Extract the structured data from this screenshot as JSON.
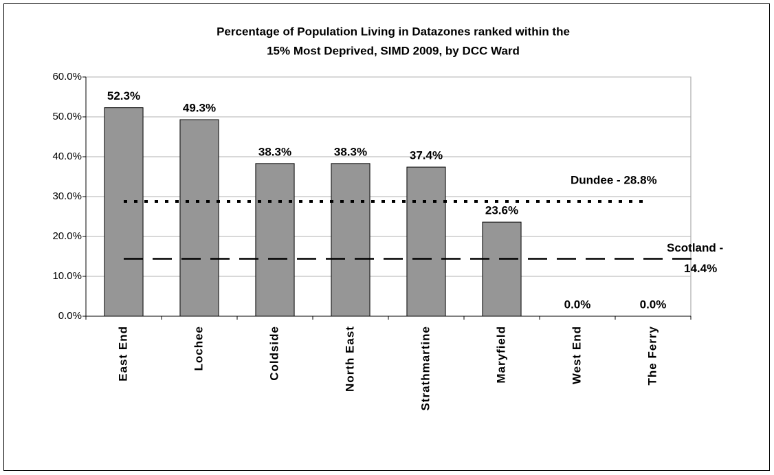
{
  "chart_data": {
    "type": "bar",
    "title": [
      "Percentage of Population Living in Datazones ranked within the",
      "15% Most Deprived, SIMD 2009, by DCC Ward"
    ],
    "categories": [
      "East End",
      "Lochee",
      "Coldside",
      "North East",
      "Strathmartine",
      "Maryfield",
      "West End",
      "The Ferry"
    ],
    "values": [
      52.3,
      49.3,
      38.3,
      38.3,
      37.4,
      23.6,
      0,
      0
    ],
    "value_labels": [
      "52.3%",
      "49.3%",
      "38.3%",
      "38.3%",
      "37.4%",
      "23.6%",
      "0.0%",
      "0.0%"
    ],
    "color": "#969696",
    "ylim": [
      0,
      60
    ],
    "yticks": [
      {
        "value": 0,
        "label": "0.0%"
      },
      {
        "value": 10,
        "label": "10.0%"
      },
      {
        "value": 20,
        "label": "20.0%"
      },
      {
        "value": 30,
        "label": "30.0%"
      },
      {
        "value": 40,
        "label": "40.0%"
      },
      {
        "value": 50,
        "label": "50.0%"
      },
      {
        "value": 60,
        "label": "60.0%"
      }
    ],
    "grid": true,
    "reference_lines": [
      {
        "label": [
          "Dundee - 28.8%"
        ],
        "value": 28.8,
        "style": "dotted"
      },
      {
        "label": [
          "Scotland -",
          "14.4%"
        ],
        "value": 14.4,
        "style": "dashed"
      }
    ]
  }
}
